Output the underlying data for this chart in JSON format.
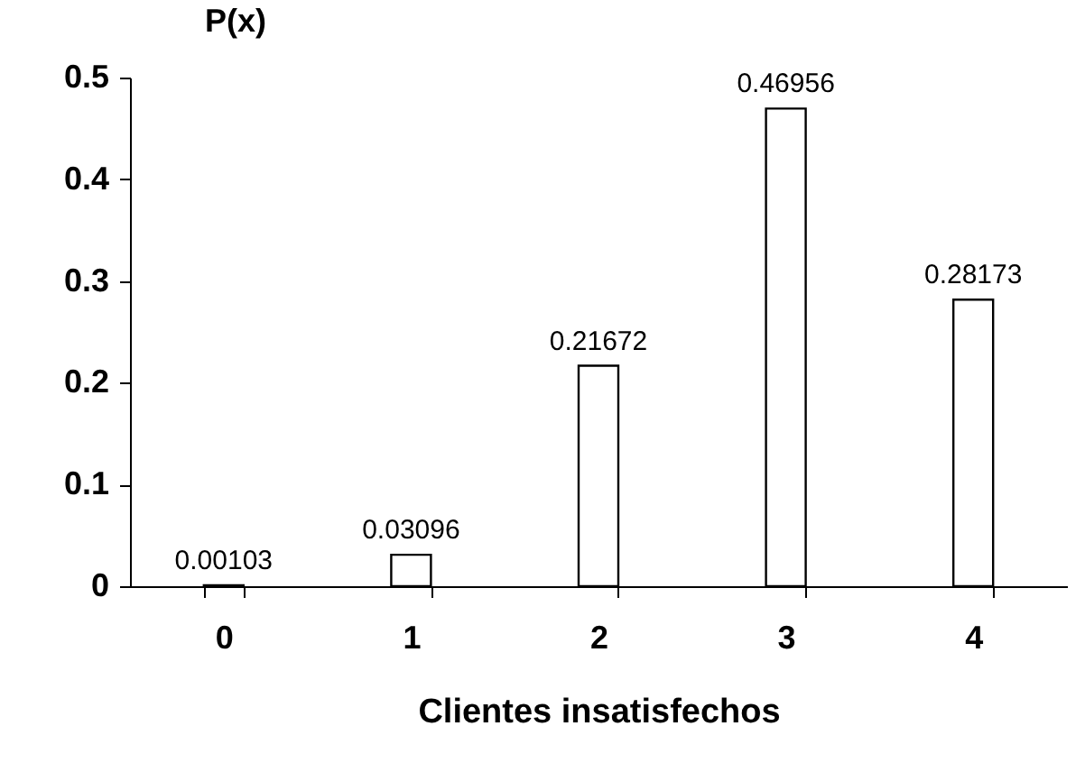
{
  "chart_data": {
    "type": "bar",
    "xlabel": "Clientes insatisfechos",
    "ylabel": "P(x)",
    "categories": [
      "0",
      "1",
      "2",
      "3",
      "4"
    ],
    "values": [
      0.00103,
      0.03096,
      0.21672,
      0.46956,
      0.28173
    ],
    "color": "#ffffff",
    "ylim": [
      0,
      0.5
    ],
    "yticks": [
      0,
      0.1,
      0.2,
      0.3,
      0.4,
      0.5
    ],
    "data_labels": true,
    "grid": false
  }
}
